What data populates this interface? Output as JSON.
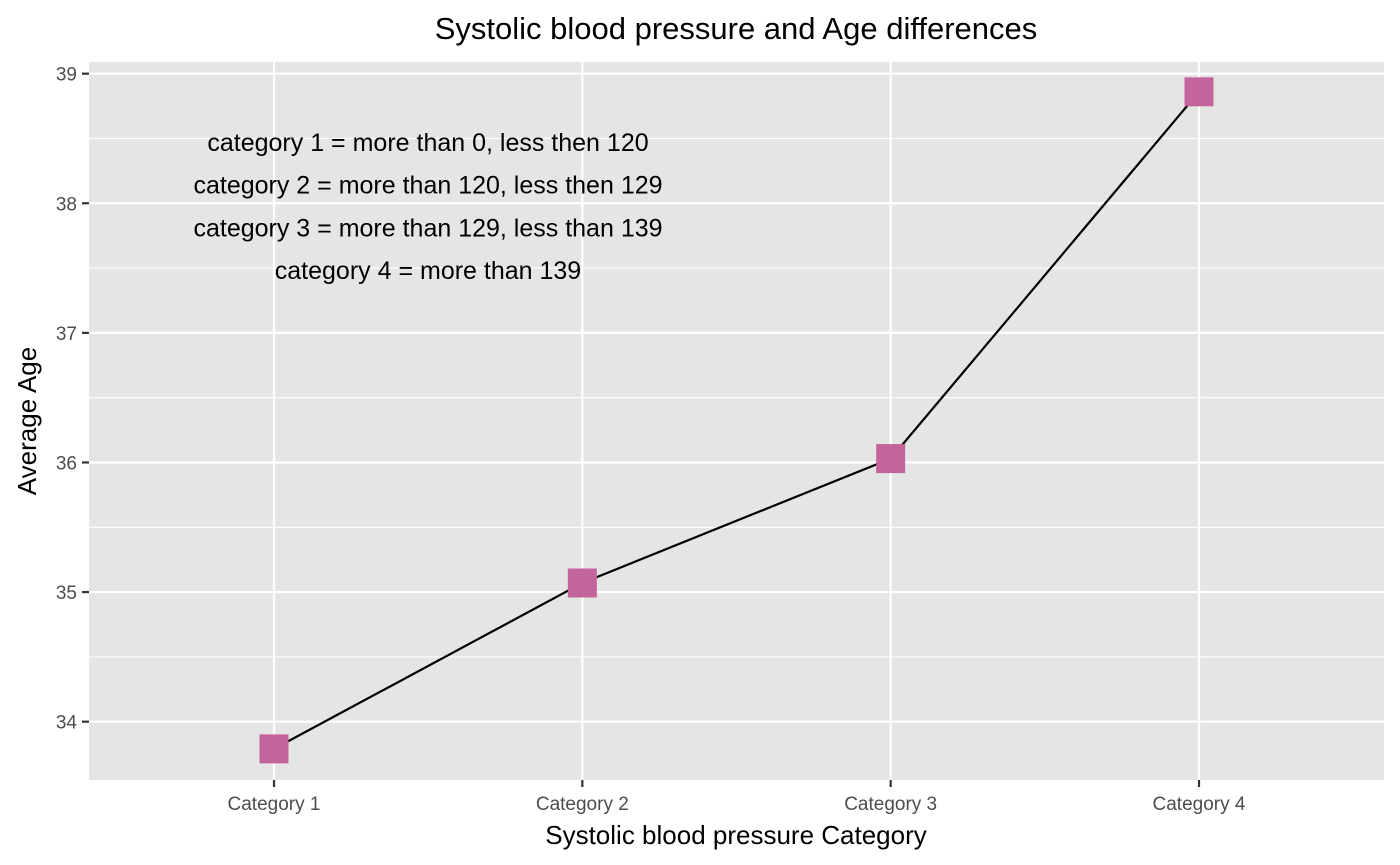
{
  "chart_data": {
    "type": "line",
    "title": "Systolic blood pressure and Age differences",
    "xlabel": "Systolic blood pressure Category",
    "ylabel": "Average Age",
    "categories": [
      "Category 1",
      "Category 2",
      "Category 3",
      "Category 4"
    ],
    "series": [
      {
        "values": [
          33.79,
          35.07,
          36.03,
          38.86
        ]
      }
    ],
    "ylim": [
      33.55,
      39.09
    ],
    "yticks": [
      "34",
      "35",
      "36",
      "37",
      "38",
      "39"
    ],
    "grid": true,
    "marker": "square",
    "annotations": [
      "category 1 = more than 0, less then 120",
      "category 2 = more than 120, less then 129",
      "category 3 = more than 129, less than 139",
      "category 4 = more than 139"
    ],
    "colors": {
      "panel_background": "#e5e5e5",
      "grid": "#ffffff",
      "line": "#000000",
      "marker": "#c3649c"
    }
  }
}
